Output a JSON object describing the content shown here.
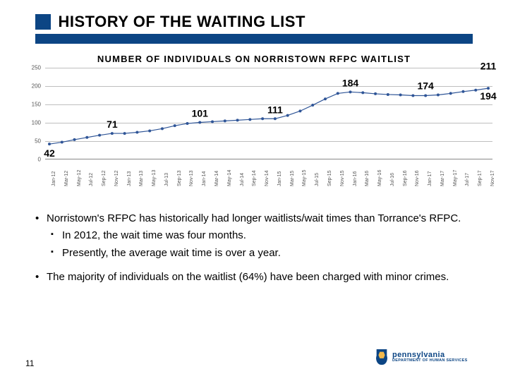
{
  "header": {
    "title": "HISTORY OF THE WAITING LIST",
    "header_bar_color": "#0c4584"
  },
  "chart": {
    "type": "line",
    "title": "NUMBER OF INDIVIDUALS ON NORRISTOWN RFPC WAITLIST",
    "title_fontsize": 13,
    "line_color": "#2f5597",
    "marker_color": "#2f5597",
    "grid_color": "#bfbfbf",
    "background_color": "#ffffff",
    "ylim": [
      0,
      250
    ],
    "ytick_step": 50,
    "yticks": [
      0,
      50,
      100,
      150,
      200,
      250
    ],
    "xlabels": [
      "Jan-12",
      "Mar-12",
      "May-12",
      "Jul-12",
      "Sep-12",
      "Nov-12",
      "Jan-13",
      "Mar-13",
      "May-13",
      "Jul-13",
      "Sep-13",
      "Nov-13",
      "Jan-14",
      "Mar-14",
      "May-14",
      "Jul-14",
      "Sep-14",
      "Nov-14",
      "Jan-15",
      "Mar-15",
      "May-15",
      "Jul-15",
      "Sep-15",
      "Nov-15",
      "Jan-16",
      "Mar-16",
      "May-16",
      "Jul-16",
      "Sep-16",
      "Nov-16",
      "Jan-17",
      "Mar-17",
      "May-17",
      "Jul-17",
      "Sep-17",
      "Nov-17"
    ],
    "series": [
      42,
      47,
      54,
      60,
      66,
      71,
      71,
      74,
      78,
      84,
      92,
      98,
      101,
      103,
      105,
      107,
      109,
      111,
      111,
      120,
      132,
      148,
      165,
      180,
      184,
      182,
      179,
      177,
      176,
      174,
      174,
      176,
      180,
      185,
      189,
      194
    ],
    "callouts": [
      {
        "i": 0,
        "value": 42,
        "text": "42",
        "dy": 18
      },
      {
        "i": 5,
        "value": 71,
        "text": "71",
        "dy": -8
      },
      {
        "i": 12,
        "value": 101,
        "text": "101",
        "dy": -8
      },
      {
        "i": 18,
        "value": 111,
        "text": "111",
        "dy": -8
      },
      {
        "i": 24,
        "value": 184,
        "text": "184",
        "dy": -8
      },
      {
        "i": 30,
        "value": 174,
        "text": "174",
        "dy": -9
      },
      {
        "i": 35,
        "value": 194,
        "text": "194",
        "dy": 16
      },
      {
        "i": 35,
        "value": 211,
        "text": "211",
        "dy": -18,
        "extra": true
      }
    ]
  },
  "bullets": {
    "items": [
      {
        "lvl": 1,
        "text": "Norristown's RFPC has historically had longer waitlists/wait times than Torrance's RFPC."
      },
      {
        "lvl": 2,
        "text": "In 2012, the wait time was four months."
      },
      {
        "lvl": 2,
        "text": "Presently, the average wait time is over a year."
      },
      {
        "lvl": 1,
        "text": "The majority of individuals on the waitlist (64%) have been charged with minor crimes.",
        "gap": true
      }
    ]
  },
  "footer": {
    "page_number": "11",
    "logo_text": "pennsylvania",
    "logo_sub": "DEPARTMENT OF HUMAN SERVICES"
  }
}
